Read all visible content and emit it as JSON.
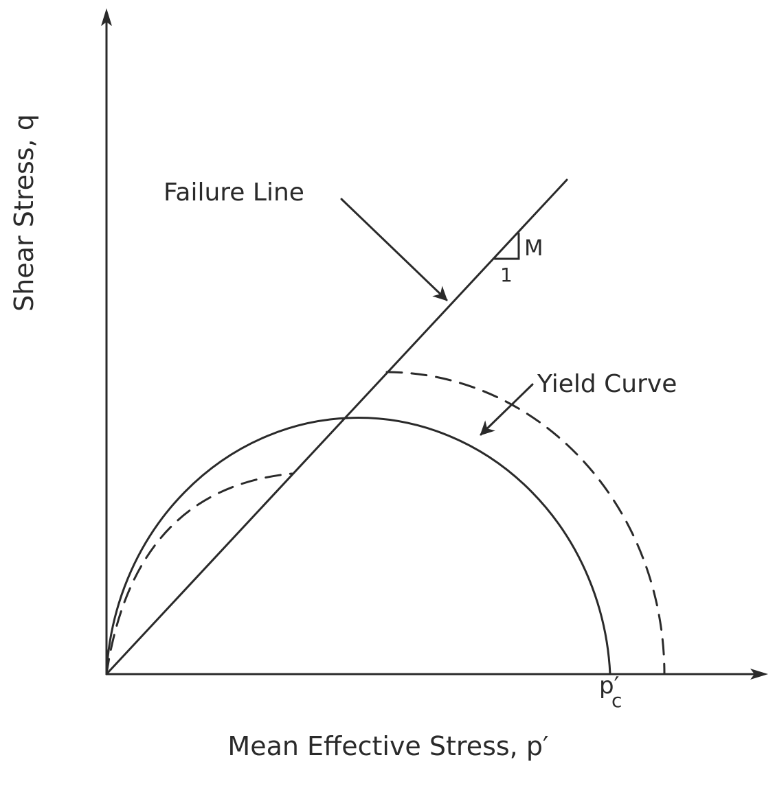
{
  "diagram": {
    "y_axis_label": "Shear Stress, q",
    "x_axis_label": "Mean Effective Stress, p′",
    "failure_line_label": "Failure Line",
    "yield_curve_label": "Yield Curve",
    "slope_rise": "M",
    "slope_run": "1",
    "pc_label": {
      "main": "p′",
      "subscript": "c"
    }
  }
}
